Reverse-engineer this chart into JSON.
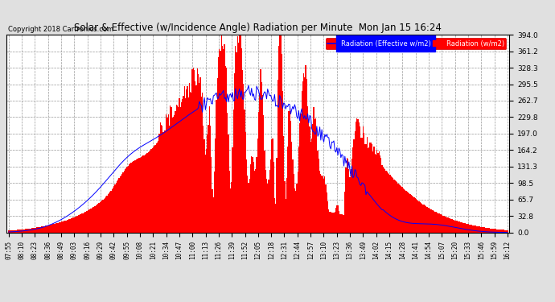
{
  "title": "Solar & Effective (w/Incidence Angle) Radiation per Minute  Mon Jan 15 16:24",
  "copyright": "Copyright 2018 Cartronics.com",
  "ylim": [
    0,
    394.0
  ],
  "yticks": [
    0.0,
    32.8,
    65.7,
    98.5,
    131.3,
    164.2,
    197.0,
    229.8,
    262.7,
    295.5,
    328.3,
    361.2,
    394.0
  ],
  "bg_color": "#e0e0e0",
  "plot_bg_color": "#ffffff",
  "fill_color": "#ff0000",
  "line_color": "#0000ff",
  "legend_labels": [
    "Radiation (Effective w/m2)",
    "Radiation (w/m2)"
  ],
  "x_times": [
    "07:55",
    "08:10",
    "08:23",
    "08:36",
    "08:49",
    "09:03",
    "09:16",
    "09:29",
    "09:42",
    "09:55",
    "10:08",
    "10:21",
    "10:34",
    "10:47",
    "11:00",
    "11:13",
    "11:26",
    "11:39",
    "11:52",
    "12:05",
    "12:18",
    "12:31",
    "12:44",
    "12:57",
    "13:10",
    "13:23",
    "13:36",
    "13:49",
    "14:02",
    "14:15",
    "14:28",
    "14:41",
    "14:54",
    "15:07",
    "15:20",
    "15:33",
    "15:46",
    "15:59",
    "16:12"
  ]
}
